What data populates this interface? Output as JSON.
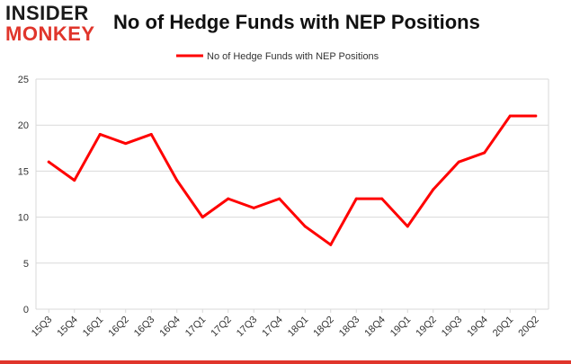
{
  "logo": {
    "line1": "INSIDER",
    "line2": "MONKEY"
  },
  "chart_data": {
    "type": "line",
    "title": "No of Hedge Funds with NEP Positions",
    "xlabel": "",
    "ylabel": "",
    "categories": [
      "15Q3",
      "15Q4",
      "16Q1",
      "16Q2",
      "16Q3",
      "16Q4",
      "17Q1",
      "17Q2",
      "17Q3",
      "17Q4",
      "18Q1",
      "18Q2",
      "18Q3",
      "18Q4",
      "19Q1",
      "19Q2",
      "19Q3",
      "19Q4",
      "20Q1",
      "20Q2"
    ],
    "series": [
      {
        "name": "No of Hedge Funds with NEP Positions",
        "values": [
          16,
          14,
          19,
          18,
          19,
          14,
          10,
          12,
          11,
          12,
          9,
          7,
          12,
          12,
          9,
          13,
          16,
          17,
          21,
          21
        ],
        "color": "#ff0000"
      }
    ],
    "ylim": [
      0,
      25
    ],
    "yticks": [
      0,
      5,
      10,
      15,
      20,
      25
    ],
    "grid": true,
    "legend": "top-center"
  },
  "colors": {
    "line": "#ff0000",
    "grid": "#d9d9d9",
    "axis_text": "#333333",
    "brand_red": "#e0352b"
  }
}
